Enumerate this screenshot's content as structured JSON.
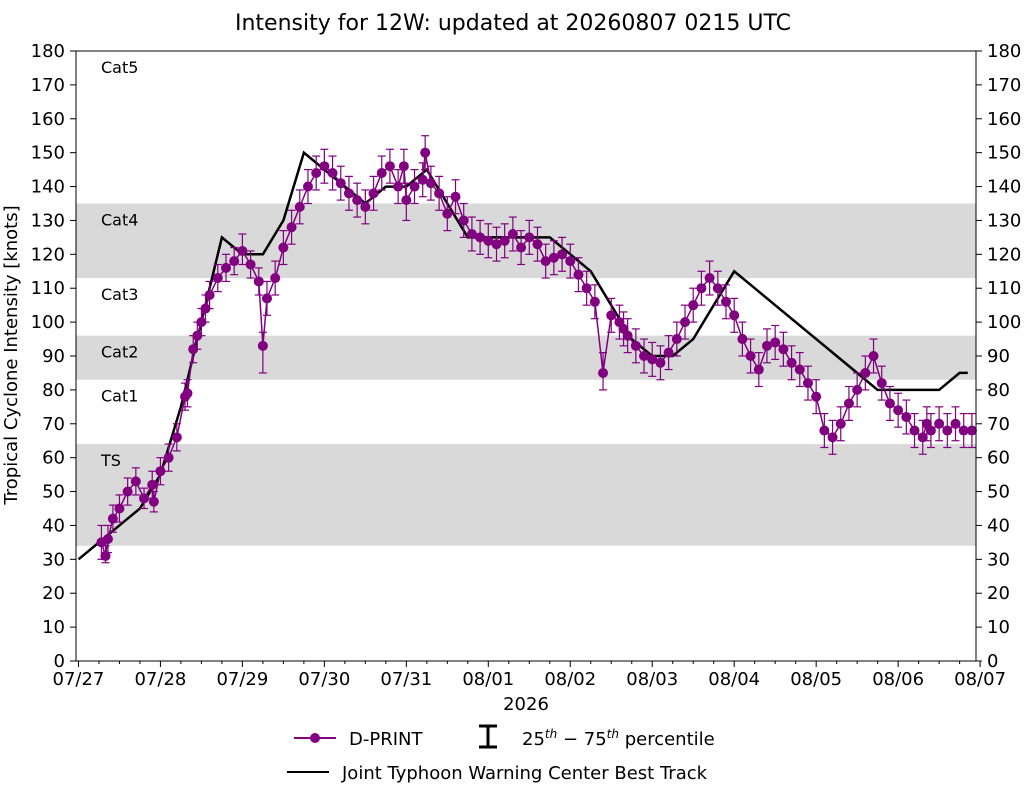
{
  "chart_data": {
    "type": "line",
    "title": "Intensity for 12W: updated at 20260807 0215 UTC",
    "xlabel": "2026",
    "ylabel": "Tropical Cyclone Intensity [knots]",
    "ylim": [
      0,
      180
    ],
    "xlim": [
      -0.03,
      10.95
    ],
    "yticks": [
      0,
      10,
      20,
      30,
      40,
      50,
      60,
      70,
      80,
      90,
      100,
      110,
      120,
      130,
      140,
      150,
      160,
      170,
      180
    ],
    "xtick_labels": [
      "07/27",
      "07/28",
      "07/29",
      "07/30",
      "07/31",
      "08/01",
      "08/02",
      "08/03",
      "08/04",
      "08/05",
      "08/06",
      "08/07"
    ],
    "x_units": "days since 07/27 00 UTC",
    "bands": [
      {
        "label": "TS",
        "from": 34,
        "to": 64,
        "shaded": true
      },
      {
        "label": "Cat1",
        "from": 64,
        "to": 83,
        "shaded": false
      },
      {
        "label": "Cat2",
        "from": 83,
        "to": 96,
        "shaded": true
      },
      {
        "label": "Cat3",
        "from": 96,
        "to": 113,
        "shaded": false
      },
      {
        "label": "Cat4",
        "from": 113,
        "to": 135,
        "shaded": true
      },
      {
        "label": "Cat5",
        "from": 135,
        "to": 180,
        "shaded": false
      }
    ],
    "band_color": "#d9d9d9",
    "series": [
      {
        "name": "D-PRINT",
        "color": "#800080",
        "marker": "circle",
        "error_bar_label": "25^{th} - 75^{th} percentile",
        "x": [
          0.28,
          0.33,
          0.36,
          0.42,
          0.5,
          0.6,
          0.7,
          0.8,
          0.9,
          0.92,
          1.0,
          1.1,
          1.2,
          1.3,
          1.33,
          1.4,
          1.45,
          1.5,
          1.55,
          1.6,
          1.7,
          1.8,
          1.9,
          2.0,
          2.1,
          2.2,
          2.25,
          2.3,
          2.4,
          2.5,
          2.6,
          2.7,
          2.8,
          2.9,
          3.0,
          3.1,
          3.2,
          3.3,
          3.4,
          3.5,
          3.6,
          3.7,
          3.8,
          3.9,
          3.97,
          4.0,
          4.1,
          4.2,
          4.23,
          4.3,
          4.4,
          4.5,
          4.6,
          4.7,
          4.8,
          4.9,
          5.0,
          5.1,
          5.2,
          5.3,
          5.4,
          5.5,
          5.6,
          5.7,
          5.8,
          5.9,
          6.0,
          6.1,
          6.2,
          6.3,
          6.4,
          6.5,
          6.6,
          6.65,
          6.7,
          6.8,
          6.9,
          7.0,
          7.1,
          7.2,
          7.3,
          7.4,
          7.5,
          7.6,
          7.7,
          7.8,
          7.9,
          8.0,
          8.1,
          8.2,
          8.3,
          8.4,
          8.5,
          8.6,
          8.7,
          8.8,
          8.9,
          9.0,
          9.1,
          9.2,
          9.3,
          9.4,
          9.5,
          9.6,
          9.7,
          9.8,
          9.9,
          10.0,
          10.1,
          10.2,
          10.3,
          10.35,
          10.4,
          10.5,
          10.6,
          10.7,
          10.8,
          10.9
        ],
        "y": [
          35,
          31,
          36,
          42,
          45,
          50,
          53,
          48,
          52,
          47,
          56,
          60,
          66,
          78,
          79,
          92,
          96,
          100,
          104,
          108,
          113,
          116,
          118,
          121,
          117,
          112,
          93,
          107,
          113,
          122,
          128,
          134,
          140,
          144,
          146,
          144,
          141,
          138,
          136,
          134,
          138,
          144,
          146,
          140,
          146,
          136,
          140,
          142,
          150,
          141,
          138,
          132,
          137,
          130,
          126,
          125,
          124,
          123,
          124,
          126,
          122,
          125,
          123,
          118,
          119,
          120,
          118,
          114,
          110,
          106,
          85,
          102,
          100,
          98,
          96,
          93,
          90,
          89,
          88,
          91,
          95,
          100,
          105,
          110,
          113,
          110,
          106,
          102,
          95,
          90,
          86,
          93,
          94,
          92,
          88,
          86,
          82,
          78,
          68,
          66,
          70,
          76,
          80,
          85,
          90,
          82,
          76,
          74,
          72,
          68,
          66,
          70,
          68,
          70,
          68,
          70,
          68,
          68
        ],
        "y_q25": [
          30,
          29,
          32,
          38,
          41,
          46,
          49,
          45,
          48,
          44,
          52,
          56,
          62,
          74,
          75,
          88,
          92,
          96,
          100,
          104,
          109,
          112,
          114,
          117,
          113,
          108,
          85,
          102,
          108,
          117,
          123,
          129,
          135,
          139,
          141,
          139,
          136,
          133,
          131,
          129,
          133,
          139,
          141,
          135,
          141,
          130,
          135,
          137,
          145,
          136,
          133,
          127,
          132,
          125,
          121,
          120,
          119,
          118,
          119,
          121,
          117,
          120,
          118,
          113,
          114,
          115,
          113,
          109,
          105,
          101,
          80,
          97,
          95,
          93,
          91,
          88,
          85,
          84,
          83,
          86,
          90,
          95,
          100,
          105,
          108,
          105,
          101,
          97,
          90,
          85,
          81,
          88,
          89,
          87,
          83,
          81,
          77,
          73,
          63,
          61,
          65,
          71,
          75,
          80,
          85,
          77,
          71,
          69,
          67,
          63,
          61,
          65,
          63,
          65,
          63,
          65,
          63,
          63
        ],
        "y_q75": [
          40,
          34,
          40,
          46,
          49,
          54,
          57,
          51,
          56,
          50,
          60,
          64,
          70,
          82,
          83,
          96,
          100,
          104,
          108,
          112,
          117,
          120,
          122,
          126,
          121,
          116,
          97,
          112,
          118,
          127,
          133,
          139,
          145,
          149,
          151,
          149,
          146,
          143,
          141,
          139,
          143,
          149,
          151,
          145,
          151,
          141,
          145,
          147,
          155,
          146,
          143,
          137,
          142,
          135,
          131,
          130,
          129,
          128,
          129,
          131,
          127,
          130,
          128,
          123,
          124,
          125,
          123,
          119,
          115,
          111,
          91,
          107,
          105,
          103,
          101,
          98,
          95,
          94,
          93,
          96,
          100,
          105,
          110,
          115,
          118,
          115,
          111,
          107,
          100,
          95,
          91,
          98,
          99,
          97,
          93,
          91,
          87,
          83,
          73,
          71,
          75,
          81,
          85,
          90,
          95,
          87,
          81,
          79,
          77,
          73,
          71,
          75,
          73,
          75,
          73,
          75,
          73,
          73
        ]
      },
      {
        "name": "Joint Typhoon Warning Center Best Track",
        "color": "#000000",
        "x": [
          0.0,
          0.25,
          0.5,
          0.75,
          1.0,
          1.25,
          1.5,
          1.75,
          2.0,
          2.25,
          2.5,
          2.75,
          3.0,
          3.25,
          3.5,
          3.75,
          4.0,
          4.25,
          4.5,
          4.75,
          5.0,
          5.25,
          5.5,
          5.75,
          6.0,
          6.25,
          6.5,
          6.75,
          7.0,
          7.25,
          7.5,
          7.75,
          8.0,
          8.25,
          8.5,
          8.75,
          9.0,
          9.25,
          9.5,
          9.75,
          10.0,
          10.25,
          10.5,
          10.75,
          10.85
        ],
        "y": [
          30,
          35,
          40,
          45,
          55,
          75,
          100,
          125,
          120,
          120,
          130,
          150,
          145,
          140,
          135,
          140,
          140,
          145,
          135,
          125,
          125,
          125,
          125,
          125,
          120,
          115,
          105,
          95,
          90,
          90,
          95,
          105,
          115,
          110,
          105,
          100,
          95,
          90,
          85,
          80,
          80,
          80,
          80,
          85,
          85
        ]
      }
    ],
    "legend_position": "bottom-center",
    "grid": false
  }
}
